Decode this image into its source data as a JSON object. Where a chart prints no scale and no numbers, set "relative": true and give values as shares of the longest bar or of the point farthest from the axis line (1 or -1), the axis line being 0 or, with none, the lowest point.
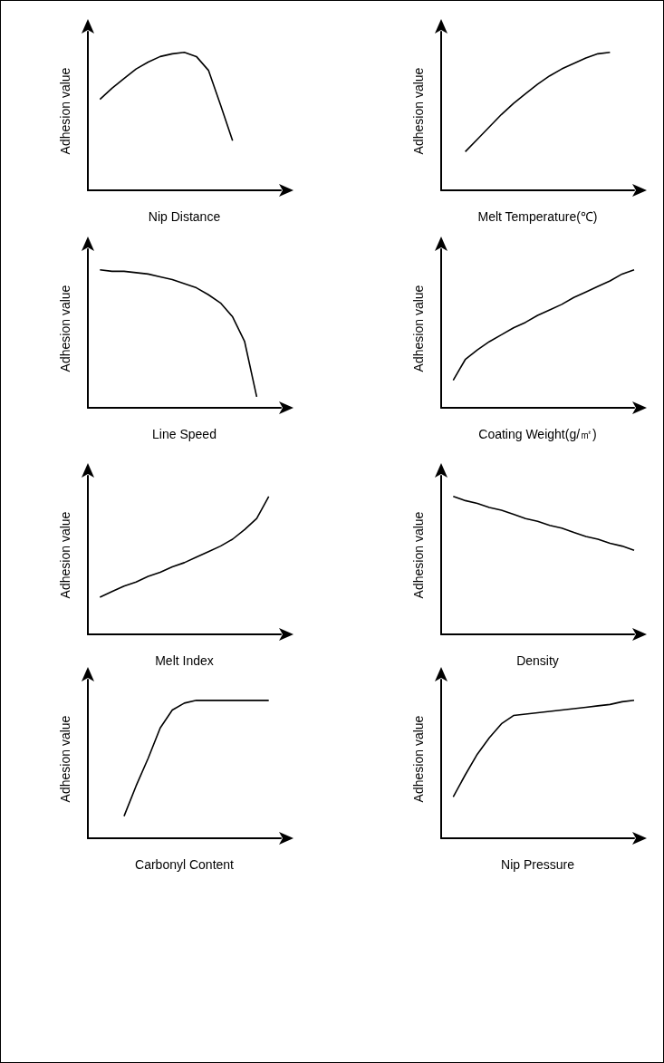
{
  "chart_data": [
    {
      "type": "line",
      "relative": true,
      "xlabel": "Nip Distance",
      "ylabel": "Adhesion value",
      "categories": [
        null,
        null,
        null,
        null,
        null,
        null,
        null,
        null,
        null,
        null,
        null,
        null,
        null,
        null,
        null,
        null,
        null
      ],
      "series": [
        {
          "color": "#000000",
          "values": [
            null,
            0.66,
            0.74,
            0.81,
            0.88,
            0.93,
            0.97,
            0.99,
            1.0,
            0.97,
            0.87,
            0.62,
            0.36,
            null,
            null,
            null,
            null
          ]
        }
      ]
    },
    {
      "type": "line",
      "relative": true,
      "xlabel": "Melt Temperature(℃)",
      "ylabel": "Adhesion value",
      "categories": [
        null,
        null,
        null,
        null,
        null,
        null,
        null,
        null,
        null,
        null,
        null,
        null,
        null,
        null,
        null,
        null,
        null
      ],
      "series": [
        {
          "color": "#000000",
          "values": [
            null,
            null,
            0.28,
            0.37,
            0.46,
            0.55,
            0.63,
            0.7,
            0.77,
            0.83,
            0.88,
            0.92,
            0.96,
            0.99,
            1.0,
            null,
            null
          ]
        }
      ]
    },
    {
      "type": "line",
      "relative": true,
      "xlabel": "Line Speed",
      "ylabel": "Adhesion value",
      "categories": [
        null,
        null,
        null,
        null,
        null,
        null,
        null,
        null,
        null,
        null,
        null,
        null,
        null,
        null,
        null,
        null,
        null
      ],
      "series": [
        {
          "color": "#000000",
          "values": [
            null,
            1.0,
            0.99,
            0.99,
            0.98,
            0.97,
            0.95,
            0.93,
            0.9,
            0.87,
            0.82,
            0.76,
            0.66,
            0.48,
            0.08,
            null,
            null
          ]
        }
      ]
    },
    {
      "type": "line",
      "relative": true,
      "xlabel": "Coating Weight(g/㎡)",
      "ylabel": "Adhesion value",
      "categories": [
        null,
        null,
        null,
        null,
        null,
        null,
        null,
        null,
        null,
        null,
        null,
        null,
        null,
        null,
        null,
        null,
        null
      ],
      "series": [
        {
          "color": "#000000",
          "values": [
            null,
            0.2,
            0.35,
            0.42,
            0.48,
            0.53,
            0.58,
            0.62,
            0.67,
            0.71,
            0.75,
            0.8,
            0.84,
            0.88,
            0.92,
            0.97,
            1.0
          ]
        }
      ]
    },
    {
      "type": "line",
      "relative": true,
      "xlabel": "Melt Index",
      "ylabel": "Adhesion value",
      "categories": [
        null,
        null,
        null,
        null,
        null,
        null,
        null,
        null,
        null,
        null,
        null,
        null,
        null,
        null,
        null,
        null,
        null
      ],
      "series": [
        {
          "color": "#000000",
          "values": [
            null,
            0.27,
            0.31,
            0.35,
            0.38,
            0.42,
            0.45,
            0.49,
            0.52,
            0.56,
            0.6,
            0.64,
            0.69,
            0.76,
            0.84,
            1.0,
            null
          ]
        }
      ]
    },
    {
      "type": "line",
      "relative": true,
      "xlabel": "Density",
      "ylabel": "Adhesion value",
      "categories": [
        null,
        null,
        null,
        null,
        null,
        null,
        null,
        null,
        null,
        null,
        null,
        null,
        null,
        null,
        null,
        null,
        null
      ],
      "series": [
        {
          "color": "#000000",
          "values": [
            null,
            1.0,
            0.97,
            0.95,
            0.92,
            0.9,
            0.87,
            0.84,
            0.82,
            0.79,
            0.77,
            0.74,
            0.71,
            0.69,
            0.66,
            0.64,
            0.61
          ]
        }
      ]
    },
    {
      "type": "line",
      "relative": true,
      "xlabel": "Carbonyl Content",
      "ylabel": "Adhesion value",
      "categories": [
        null,
        null,
        null,
        null,
        null,
        null,
        null,
        null,
        null,
        null,
        null,
        null,
        null,
        null,
        null,
        null,
        null
      ],
      "series": [
        {
          "color": "#000000",
          "values": [
            null,
            null,
            null,
            0.16,
            0.38,
            0.58,
            0.8,
            0.93,
            0.98,
            1.0,
            1.0,
            1.0,
            1.0,
            1.0,
            1.0,
            1.0,
            null
          ]
        }
      ]
    },
    {
      "type": "line",
      "relative": true,
      "xlabel": "Nip Pressure",
      "ylabel": "Adhesion value",
      "categories": [
        null,
        null,
        null,
        null,
        null,
        null,
        null,
        null,
        null,
        null,
        null,
        null,
        null,
        null,
        null,
        null,
        null
      ],
      "series": [
        {
          "color": "#000000",
          "values": [
            null,
            0.3,
            0.46,
            0.61,
            0.73,
            0.83,
            0.89,
            0.9,
            0.91,
            0.92,
            0.93,
            0.94,
            0.95,
            0.96,
            0.97,
            0.99,
            1.0
          ]
        }
      ]
    }
  ]
}
